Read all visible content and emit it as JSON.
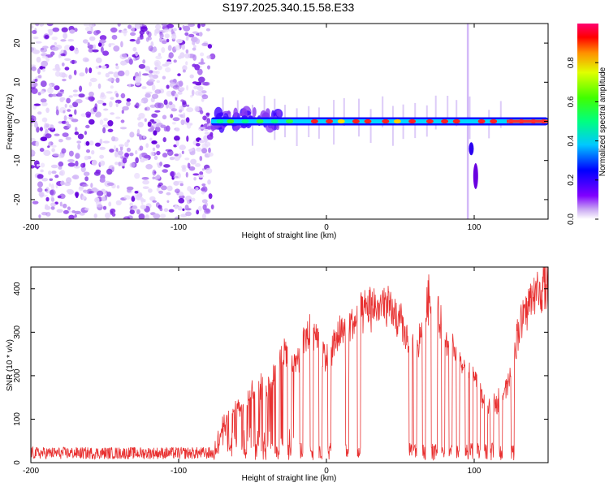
{
  "title": "S197.2025.340.15.58.E33",
  "chart_data": [
    {
      "type": "heatmap",
      "name": "spectrogram",
      "xlabel": "Height of straight line (km)",
      "ylabel": "Frequency (Hz)",
      "xlim": [
        -200,
        150
      ],
      "ylim": [
        -25,
        25
      ],
      "xticks": [
        -200,
        -100,
        0,
        100
      ],
      "yticks": [
        -20,
        -10,
        0,
        10,
        20
      ],
      "noise_region_x": [
        -200,
        -77
      ],
      "signal_band_freq_hz": 0,
      "colorbar": {
        "label": "Normalized spectral amplitude",
        "range": [
          0,
          1
        ],
        "ticks": [
          0.0,
          0.2,
          0.4,
          0.6,
          0.8
        ]
      }
    },
    {
      "type": "line",
      "name": "snr",
      "xlabel": "Height of straight line (km)",
      "ylabel": "SNR (10 * v/v)",
      "xlim": [
        -200,
        150
      ],
      "ylim": [
        0,
        450
      ],
      "xticks": [
        -200,
        -100,
        0,
        100
      ],
      "yticks": [
        0,
        100,
        200,
        300,
        400
      ],
      "color": "#e83030",
      "series_envelope": {
        "x": [
          -200,
          -80,
          -75,
          -70,
          -60,
          -50,
          -40,
          -30,
          -20,
          -10,
          0,
          10,
          20,
          30,
          40,
          50,
          60,
          70,
          80,
          90,
          100,
          110,
          120,
          125,
          130,
          140,
          150
        ],
        "y": [
          18,
          18,
          20,
          90,
          130,
          170,
          180,
          260,
          240,
          330,
          240,
          310,
          335,
          365,
          370,
          330,
          250,
          400,
          300,
          240,
          200,
          120,
          170,
          200,
          320,
          400,
          415
        ]
      },
      "dropouts_x": [
        -65,
        -55,
        -47,
        -42,
        -33,
        -25,
        -17,
        -10,
        -4,
        2,
        14,
        22,
        57,
        60,
        66,
        72,
        74,
        79,
        84,
        89,
        95,
        98,
        103,
        108,
        112,
        118,
        126
      ]
    }
  ]
}
